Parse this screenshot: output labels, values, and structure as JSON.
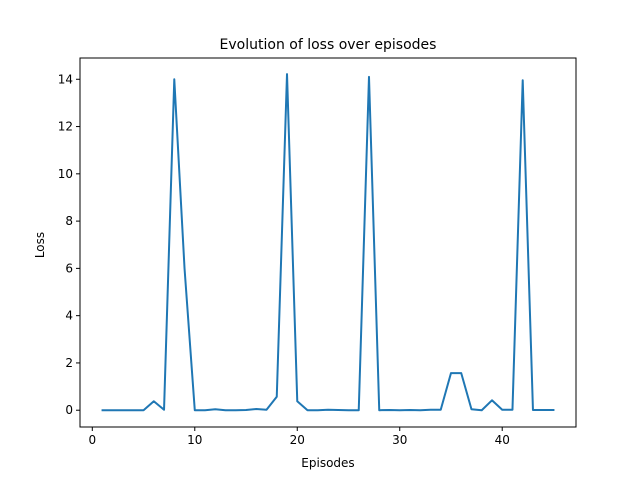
{
  "chart_data": {
    "type": "line",
    "title": "Evolution of loss over episodes",
    "xlabel": "Episodes",
    "ylabel": "Loss",
    "xlim": [
      -1.2,
      47.2
    ],
    "ylim": [
      -0.71,
      14.9
    ],
    "xticks": [
      0,
      10,
      20,
      30,
      40
    ],
    "yticks": [
      0,
      2,
      4,
      6,
      8,
      10,
      12,
      14
    ],
    "grid": false,
    "series": [
      {
        "color": "#1f77b4",
        "x": [
          1,
          2,
          3,
          4,
          5,
          6,
          7,
          8,
          9,
          10,
          11,
          12,
          13,
          14,
          15,
          16,
          17,
          18,
          19,
          20,
          21,
          22,
          23,
          24,
          25,
          26,
          27,
          28,
          29,
          30,
          31,
          32,
          33,
          34,
          35,
          36,
          37,
          38,
          39,
          40,
          41,
          42,
          43,
          44,
          45
        ],
        "y": [
          0.0,
          0.0,
          0.0,
          0.0,
          0.0,
          0.38,
          0.02,
          14.0,
          6.0,
          0.0,
          0.0,
          0.04,
          0.0,
          0.0,
          0.01,
          0.05,
          0.02,
          0.57,
          14.22,
          0.38,
          0.0,
          0.0,
          0.02,
          0.01,
          0.0,
          0.0,
          14.1,
          0.0,
          0.01,
          0.0,
          0.01,
          0.0,
          0.02,
          0.02,
          1.57,
          1.57,
          0.04,
          0.0,
          0.42,
          0.02,
          0.02,
          13.96,
          0.01,
          0.01,
          0.01
        ]
      }
    ]
  }
}
